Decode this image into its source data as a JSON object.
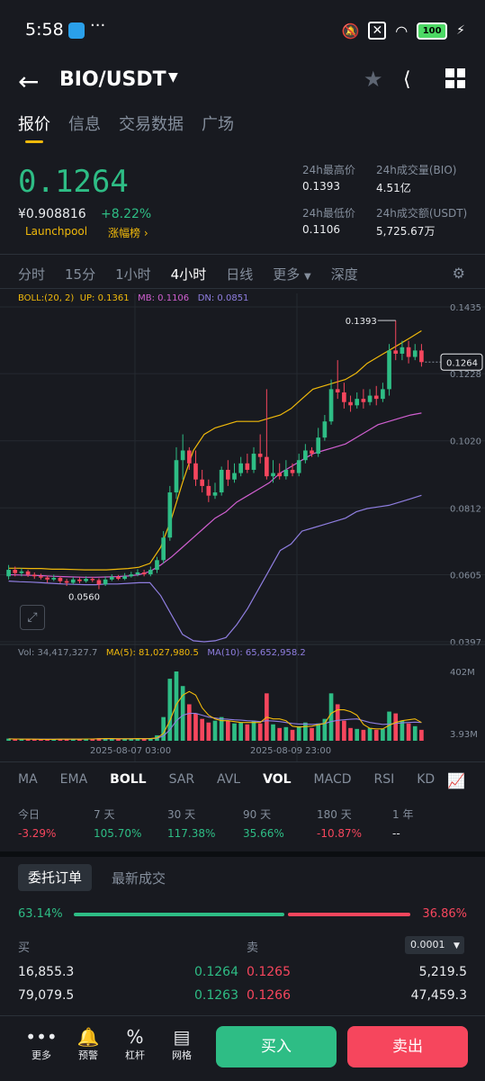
{
  "status_bar": {
    "time": "5:58",
    "dots": "···",
    "battery": "100"
  },
  "header": {
    "title": "BIO/USDT"
  },
  "tabs": [
    "报价",
    "信息",
    "交易数据",
    "广场"
  ],
  "price": {
    "last": "0.1264",
    "cny": "¥0.908816",
    "change": "+8.22%",
    "launchpool": "Launchpool",
    "rank": "涨幅榜",
    "high_label": "24h最高价",
    "high": "0.1393",
    "low_label": "24h最低价",
    "low": "0.1106",
    "vol_label": "24h成交量(BIO)",
    "vol": "4.51亿",
    "amt_label": "24h成交额(USDT)",
    "amt": "5,725.67万"
  },
  "intervals": [
    "分时",
    "15分",
    "1小时",
    "4小时",
    "日线",
    "更多",
    "深度"
  ],
  "boll": {
    "params": "BOLL:(20, 2)",
    "up": "UP: 0.1361",
    "mb": "MB: 0.1106",
    "dn": "DN: 0.0851"
  },
  "chart_data": {
    "type": "candlestick",
    "y_ticks": [
      "0.1435",
      "0.1228",
      "0.1020",
      "0.0812",
      "0.0605",
      "0.0397"
    ],
    "high_marker": "0.1393",
    "low_marker": "0.0560",
    "last_marker": "0.1264",
    "x_ticks": [
      "2025-08-07 03:00",
      "2025-08-09 23:00"
    ],
    "vol_ticks": [
      "402M",
      "3.93M"
    ],
    "candles": [
      [
        0.06,
        0.062,
        0.0635,
        0.059
      ],
      [
        0.062,
        0.061,
        0.063,
        0.06
      ],
      [
        0.061,
        0.0615,
        0.0625,
        0.06
      ],
      [
        0.0615,
        0.0605,
        0.062,
        0.0598
      ],
      [
        0.0605,
        0.06,
        0.0612,
        0.0592
      ],
      [
        0.06,
        0.0596,
        0.0608,
        0.059
      ],
      [
        0.0596,
        0.059,
        0.0602,
        0.058
      ],
      [
        0.059,
        0.0595,
        0.0605,
        0.0585
      ],
      [
        0.0595,
        0.0585,
        0.06,
        0.0578
      ],
      [
        0.0585,
        0.058,
        0.0592,
        0.057
      ],
      [
        0.058,
        0.059,
        0.0598,
        0.0575
      ],
      [
        0.059,
        0.0585,
        0.0597,
        0.0578
      ],
      [
        0.0585,
        0.0592,
        0.06,
        0.058
      ],
      [
        0.0592,
        0.0588,
        0.0598,
        0.0582
      ],
      [
        0.0588,
        0.0575,
        0.0594,
        0.056
      ],
      [
        0.0575,
        0.059,
        0.06,
        0.057
      ],
      [
        0.059,
        0.0598,
        0.0606,
        0.0585
      ],
      [
        0.0598,
        0.0592,
        0.0604,
        0.0588
      ],
      [
        0.0592,
        0.06,
        0.061,
        0.0588
      ],
      [
        0.06,
        0.0606,
        0.0614,
        0.0596
      ],
      [
        0.0606,
        0.0612,
        0.0622,
        0.06
      ],
      [
        0.0612,
        0.0606,
        0.062,
        0.06
      ],
      [
        0.0606,
        0.062,
        0.063,
        0.06
      ],
      [
        0.062,
        0.065,
        0.066,
        0.061
      ],
      [
        0.065,
        0.072,
        0.074,
        0.064
      ],
      [
        0.072,
        0.086,
        0.088,
        0.071
      ],
      [
        0.086,
        0.096,
        0.1,
        0.084
      ],
      [
        0.096,
        0.099,
        0.104,
        0.09
      ],
      [
        0.099,
        0.095,
        0.1,
        0.093
      ],
      [
        0.095,
        0.09,
        0.099,
        0.088
      ],
      [
        0.09,
        0.088,
        0.093,
        0.086
      ],
      [
        0.088,
        0.085,
        0.09,
        0.083
      ],
      [
        0.085,
        0.086,
        0.089,
        0.084
      ],
      [
        0.086,
        0.093,
        0.094,
        0.085
      ],
      [
        0.093,
        0.09,
        0.096,
        0.088
      ],
      [
        0.09,
        0.092,
        0.095,
        0.089
      ],
      [
        0.092,
        0.095,
        0.097,
        0.091
      ],
      [
        0.095,
        0.093,
        0.098,
        0.092
      ],
      [
        0.093,
        0.098,
        0.1,
        0.092
      ],
      [
        0.098,
        0.097,
        0.104,
        0.095
      ],
      [
        0.097,
        0.091,
        0.118,
        0.09
      ],
      [
        0.091,
        0.092,
        0.096,
        0.089
      ],
      [
        0.092,
        0.091,
        0.095,
        0.09
      ],
      [
        0.091,
        0.093,
        0.096,
        0.09
      ],
      [
        0.093,
        0.092,
        0.095,
        0.091
      ],
      [
        0.092,
        0.096,
        0.098,
        0.091
      ],
      [
        0.096,
        0.099,
        0.101,
        0.095
      ],
      [
        0.099,
        0.098,
        0.1,
        0.097
      ],
      [
        0.098,
        0.103,
        0.106,
        0.097
      ],
      [
        0.103,
        0.108,
        0.11,
        0.102
      ],
      [
        0.108,
        0.118,
        0.121,
        0.107
      ],
      [
        0.118,
        0.117,
        0.127,
        0.115
      ],
      [
        0.117,
        0.114,
        0.12,
        0.112
      ],
      [
        0.114,
        0.113,
        0.116,
        0.111
      ],
      [
        0.113,
        0.115,
        0.117,
        0.112
      ],
      [
        0.115,
        0.114,
        0.118,
        0.112
      ],
      [
        0.114,
        0.116,
        0.118,
        0.113
      ],
      [
        0.116,
        0.115,
        0.119,
        0.113
      ],
      [
        0.115,
        0.118,
        0.12,
        0.114
      ],
      [
        0.118,
        0.13,
        0.132,
        0.116
      ],
      [
        0.13,
        0.129,
        0.1393,
        0.127
      ],
      [
        0.129,
        0.131,
        0.133,
        0.127
      ],
      [
        0.131,
        0.128,
        0.133,
        0.126
      ],
      [
        0.128,
        0.13,
        0.132,
        0.127
      ],
      [
        0.13,
        0.1264,
        0.132,
        0.125
      ]
    ],
    "boll_up": [
      0.0625,
      0.0625,
      0.0624,
      0.0624,
      0.0622,
      0.0622,
      0.0621,
      0.062,
      0.062,
      0.062,
      0.0622,
      0.0624,
      0.0628,
      0.064,
      0.069,
      0.078,
      0.089,
      0.099,
      0.104,
      0.106,
      0.107,
      0.108,
      0.108,
      0.108,
      0.109,
      0.11,
      0.112,
      0.115,
      0.118,
      0.119,
      0.12,
      0.121,
      0.123,
      0.126,
      0.128,
      0.13,
      0.132,
      0.134,
      0.1361
    ],
    "boll_mb": [
      0.0605,
      0.0604,
      0.0603,
      0.0602,
      0.06,
      0.0599,
      0.0598,
      0.0597,
      0.0597,
      0.0598,
      0.0599,
      0.0601,
      0.0605,
      0.0615,
      0.0635,
      0.066,
      0.069,
      0.072,
      0.075,
      0.078,
      0.08,
      0.083,
      0.085,
      0.087,
      0.089,
      0.092,
      0.094,
      0.096,
      0.098,
      0.099,
      0.1,
      0.101,
      0.103,
      0.105,
      0.107,
      0.108,
      0.109,
      0.11,
      0.1106
    ],
    "boll_dn": [
      0.0585,
      0.0583,
      0.0582,
      0.058,
      0.0578,
      0.0576,
      0.0575,
      0.0574,
      0.0574,
      0.0576,
      0.0576,
      0.0578,
      0.058,
      0.058,
      0.054,
      0.048,
      0.042,
      0.04,
      0.0397,
      0.04,
      0.041,
      0.045,
      0.05,
      0.056,
      0.062,
      0.068,
      0.07,
      0.074,
      0.075,
      0.076,
      0.077,
      0.078,
      0.08,
      0.081,
      0.0815,
      0.082,
      0.083,
      0.084,
      0.0851
    ],
    "volumes": [
      12,
      10,
      9,
      8,
      8,
      7,
      9,
      8,
      10,
      9,
      11,
      9,
      10,
      8,
      14,
      12,
      10,
      9,
      10,
      11,
      12,
      10,
      14,
      30,
      130,
      340,
      380,
      300,
      200,
      150,
      120,
      100,
      110,
      130,
      110,
      95,
      100,
      90,
      110,
      95,
      260,
      90,
      70,
      75,
      60,
      80,
      100,
      70,
      95,
      120,
      260,
      200,
      110,
      70,
      65,
      60,
      70,
      60,
      65,
      160,
      150,
      110,
      95,
      80,
      60
    ],
    "vol_ma5": [
      10,
      10,
      9,
      9,
      9,
      8,
      8,
      8,
      9,
      9,
      9,
      9,
      10,
      10,
      11,
      12,
      12,
      11,
      11,
      11,
      12,
      11,
      12,
      16,
      40,
      110,
      200,
      250,
      270,
      250,
      180,
      140,
      120,
      110,
      110,
      105,
      100,
      100,
      100,
      100,
      130,
      120,
      120,
      110,
      80,
      75,
      78,
      80,
      88,
      95,
      150,
      170,
      170,
      160,
      140,
      90,
      68,
      65,
      65,
      85,
      100,
      110,
      115,
      120,
      100
    ],
    "vol_ma10": [
      11,
      10,
      10,
      10,
      9,
      9,
      9,
      9,
      9,
      9,
      9,
      9,
      10,
      10,
      11,
      11,
      11,
      11,
      11,
      11,
      12,
      12,
      12,
      14,
      26,
      60,
      110,
      140,
      150,
      150,
      140,
      130,
      125,
      120,
      118,
      115,
      113,
      110,
      108,
      105,
      110,
      108,
      105,
      100,
      95,
      92,
      92,
      90,
      92,
      95,
      105,
      112,
      115,
      118,
      120,
      110,
      100,
      95,
      90,
      92,
      95,
      98,
      100,
      102,
      100
    ],
    "vol_label": "Vol: 34,417,327.7",
    "ma5_label": "MA(5): 81,027,980.5",
    "ma10_label": "MA(10): 65,652,958.2"
  },
  "indicators": [
    "MA",
    "EMA",
    "BOLL",
    "SAR",
    "AVL",
    "VOL",
    "MACD",
    "RSI",
    "KD"
  ],
  "performance": [
    {
      "label": "今日",
      "value": "-3.29%",
      "color": "red"
    },
    {
      "label": "7 天",
      "value": "105.70%",
      "color": "green"
    },
    {
      "label": "30 天",
      "value": "117.38%",
      "color": "green"
    },
    {
      "label": "90 天",
      "value": "35.66%",
      "color": "green"
    },
    {
      "label": "180 天",
      "value": "-10.87%",
      "color": "red"
    },
    {
      "label": "1 年",
      "value": "--",
      "color": "white"
    }
  ],
  "orderbook": {
    "tab_active": "委托订单",
    "tab_other": "最新成交",
    "buy_ratio": "63.14%",
    "sell_ratio": "36.86%",
    "buy_label": "买",
    "sell_label": "卖",
    "precision": "0.0001",
    "rows": [
      {
        "bid_qty": "16,855.3",
        "bid": "0.1264",
        "ask": "0.1265",
        "ask_qty": "5,219.5"
      },
      {
        "bid_qty": "79,079.5",
        "bid": "0.1263",
        "ask": "0.1266",
        "ask_qty": "47,459.3"
      }
    ]
  },
  "bottom": {
    "more": "更多",
    "alert": "预警",
    "leverage": "杠杆",
    "grid": "网格",
    "buy": "买入",
    "sell": "卖出"
  }
}
